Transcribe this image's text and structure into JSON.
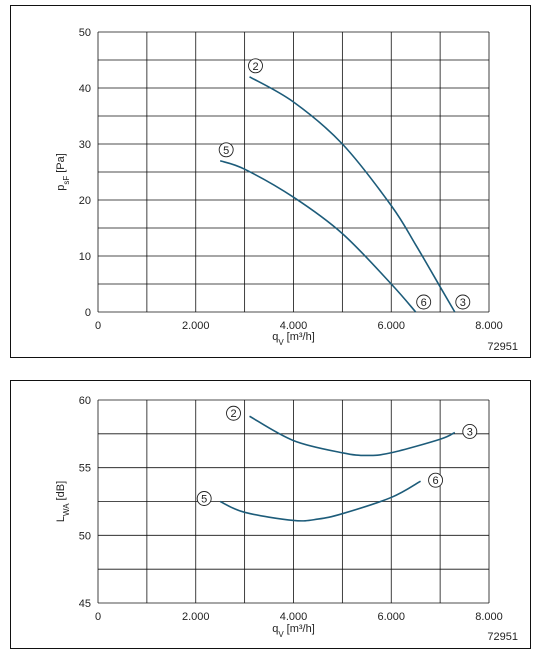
{
  "chart_data": [
    {
      "type": "line",
      "xlabel": {
        "symbol": "q",
        "subscript": "V",
        "unit": "[m³/h]"
      },
      "ylabel": {
        "symbol": "p",
        "subscript": "sF",
        "unit": "[Pa]"
      },
      "code": "72951",
      "xlim": [
        0,
        8000
      ],
      "xticks": [
        0,
        {
          "value": 2000,
          "label": "2.000"
        },
        {
          "value": 4000,
          "label": "4.000"
        },
        {
          "value": 6000,
          "label": "6.000"
        },
        {
          "value": 8000,
          "label": "8.000"
        }
      ],
      "ylim": [
        0,
        50
      ],
      "yticks": [
        0,
        10,
        20,
        30,
        40,
        50
      ],
      "grid": true,
      "series": [
        {
          "color": "#1d5c7a",
          "start_label": "2",
          "end_label": "3",
          "x": [
            3100,
            4000,
            5000,
            6000,
            6500,
            7000,
            7300
          ],
          "values": [
            42,
            37.5,
            30,
            19,
            12,
            4.5,
            0
          ]
        },
        {
          "color": "#1d5c7a",
          "start_label": "5",
          "end_label": "6",
          "x": [
            2500,
            3000,
            4000,
            5000,
            6000,
            6500
          ],
          "values": [
            27,
            25.5,
            20.5,
            14,
            5,
            0
          ]
        }
      ]
    },
    {
      "type": "line",
      "xlabel": {
        "symbol": "q",
        "subscript": "V",
        "unit": "[m³/h]"
      },
      "ylabel": {
        "symbol": "L",
        "subscript": "WA",
        "unit": "[dB]"
      },
      "code": "72951",
      "xlim": [
        0,
        8000
      ],
      "xticks": [
        0,
        {
          "value": 2000,
          "label": "2.000"
        },
        {
          "value": 4000,
          "label": "4.000"
        },
        {
          "value": 6000,
          "label": "6.000"
        },
        {
          "value": 8000,
          "label": "8.000"
        }
      ],
      "ylim": [
        45,
        60
      ],
      "yticks": [
        45,
        50,
        55,
        60
      ],
      "grid": true,
      "series": [
        {
          "color": "#1d5c7a",
          "start_label": "2",
          "end_label": "3",
          "x": [
            3100,
            4000,
            5000,
            5500,
            6000,
            7000,
            7300
          ],
          "values": [
            58.8,
            57.0,
            56.1,
            55.9,
            56.1,
            57.1,
            57.6
          ]
        },
        {
          "color": "#1d5c7a",
          "start_label": "5",
          "end_label": "6",
          "x": [
            2500,
            3000,
            4000,
            4500,
            5000,
            6000,
            6600
          ],
          "values": [
            52.5,
            51.7,
            51.1,
            51.2,
            51.6,
            52.8,
            54.0
          ]
        }
      ]
    }
  ]
}
